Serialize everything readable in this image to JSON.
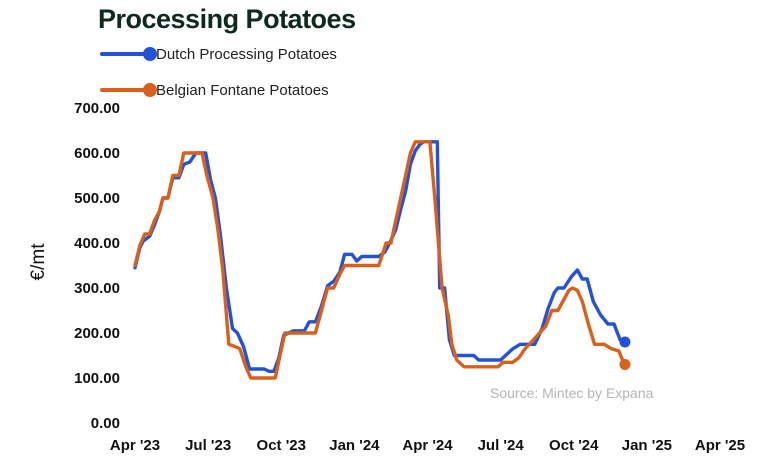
{
  "chart_data": {
    "type": "line",
    "title": "Processing Potatoes",
    "ylabel": "€/mt",
    "xlabel": "",
    "ylim": [
      0,
      700
    ],
    "yticks": [
      "0.00",
      "100.00",
      "200.00",
      "300.00",
      "400.00",
      "500.00",
      "600.00",
      "700.00"
    ],
    "xticks": [
      "Apr '23",
      "Jul '23",
      "Oct '23",
      "Jan '24",
      "Apr '24",
      "Jul '24",
      "Oct '24",
      "Jan '25",
      "Apr '25"
    ],
    "xlim": [
      0,
      24
    ],
    "grid": false,
    "legend": "top-left",
    "source": "Source: Mintec by Expana",
    "series": [
      {
        "name": "Dutch Processing Potatoes",
        "color": "#2352d6",
        "points": [
          [
            0,
            345
          ],
          [
            0.2,
            390
          ],
          [
            0.35,
            405
          ],
          [
            0.6,
            415
          ],
          [
            0.8,
            440
          ],
          [
            1.0,
            470
          ],
          [
            1.15,
            500
          ],
          [
            1.35,
            500
          ],
          [
            1.55,
            545
          ],
          [
            1.8,
            545
          ],
          [
            2.0,
            575
          ],
          [
            2.25,
            580
          ],
          [
            2.5,
            600
          ],
          [
            2.9,
            600
          ],
          [
            3.1,
            540
          ],
          [
            3.3,
            500
          ],
          [
            3.5,
            420
          ],
          [
            3.75,
            300
          ],
          [
            4.0,
            210
          ],
          [
            4.2,
            200
          ],
          [
            4.45,
            170
          ],
          [
            4.7,
            120
          ],
          [
            5.3,
            120
          ],
          [
            5.5,
            115
          ],
          [
            5.7,
            115
          ],
          [
            5.9,
            145
          ],
          [
            6.1,
            195
          ],
          [
            6.5,
            205
          ],
          [
            6.95,
            205
          ],
          [
            7.15,
            225
          ],
          [
            7.4,
            225
          ],
          [
            7.65,
            260
          ],
          [
            7.9,
            305
          ],
          [
            8.15,
            315
          ],
          [
            8.4,
            335
          ],
          [
            8.6,
            375
          ],
          [
            8.9,
            375
          ],
          [
            9.1,
            360
          ],
          [
            9.3,
            370
          ],
          [
            10.0,
            370
          ],
          [
            10.25,
            380
          ],
          [
            10.45,
            400
          ],
          [
            10.7,
            430
          ],
          [
            10.9,
            475
          ],
          [
            11.1,
            515
          ],
          [
            11.3,
            575
          ],
          [
            11.5,
            605
          ],
          [
            11.7,
            620
          ],
          [
            11.85,
            625
          ],
          [
            12.4,
            625
          ],
          [
            12.5,
            300
          ],
          [
            12.7,
            300
          ],
          [
            12.9,
            185
          ],
          [
            13.1,
            150
          ],
          [
            13.9,
            150
          ],
          [
            14.1,
            140
          ],
          [
            15.0,
            140
          ],
          [
            15.2,
            150
          ],
          [
            15.5,
            165
          ],
          [
            15.8,
            175
          ],
          [
            16.4,
            175
          ],
          [
            16.7,
            210
          ],
          [
            16.95,
            255
          ],
          [
            17.2,
            290
          ],
          [
            17.35,
            300
          ],
          [
            17.6,
            300
          ],
          [
            17.9,
            325
          ],
          [
            18.15,
            340
          ],
          [
            18.35,
            320
          ],
          [
            18.55,
            320
          ],
          [
            18.8,
            270
          ],
          [
            19.1,
            240
          ],
          [
            19.4,
            220
          ],
          [
            19.65,
            220
          ],
          [
            19.9,
            185
          ],
          [
            20.1,
            180
          ]
        ],
        "end_marker": [
          20.1,
          180
        ]
      },
      {
        "name": "Belgian Fontane Potatoes",
        "color": "#d9601a",
        "points": [
          [
            0,
            350
          ],
          [
            0.2,
            395
          ],
          [
            0.4,
            420
          ],
          [
            0.6,
            420
          ],
          [
            0.8,
            450
          ],
          [
            1.0,
            470
          ],
          [
            1.15,
            500
          ],
          [
            1.35,
            500
          ],
          [
            1.55,
            550
          ],
          [
            1.8,
            550
          ],
          [
            2.0,
            600
          ],
          [
            2.75,
            600
          ],
          [
            2.95,
            550
          ],
          [
            3.2,
            500
          ],
          [
            3.4,
            430
          ],
          [
            3.6,
            340
          ],
          [
            3.85,
            175
          ],
          [
            4.1,
            170
          ],
          [
            4.3,
            165
          ],
          [
            4.55,
            125
          ],
          [
            4.75,
            100
          ],
          [
            5.75,
            100
          ],
          [
            5.95,
            150
          ],
          [
            6.15,
            200
          ],
          [
            6.4,
            200
          ],
          [
            7.4,
            200
          ],
          [
            7.65,
            250
          ],
          [
            7.9,
            300
          ],
          [
            8.15,
            300
          ],
          [
            8.4,
            330
          ],
          [
            8.6,
            350
          ],
          [
            10.0,
            350
          ],
          [
            10.3,
            400
          ],
          [
            10.5,
            400
          ],
          [
            10.7,
            450
          ],
          [
            10.9,
            500
          ],
          [
            11.1,
            550
          ],
          [
            11.3,
            600
          ],
          [
            11.5,
            625
          ],
          [
            12.1,
            625
          ],
          [
            12.3,
            500
          ],
          [
            12.6,
            300
          ],
          [
            12.85,
            240
          ],
          [
            13.0,
            175
          ],
          [
            13.2,
            140
          ],
          [
            13.5,
            125
          ],
          [
            14.9,
            125
          ],
          [
            15.1,
            135
          ],
          [
            15.5,
            135
          ],
          [
            15.75,
            145
          ],
          [
            16.0,
            165
          ],
          [
            16.35,
            185
          ],
          [
            16.6,
            200
          ],
          [
            16.85,
            215
          ],
          [
            17.1,
            250
          ],
          [
            17.35,
            250
          ],
          [
            17.55,
            270
          ],
          [
            17.8,
            295
          ],
          [
            17.95,
            300
          ],
          [
            18.15,
            295
          ],
          [
            18.35,
            270
          ],
          [
            18.6,
            220
          ],
          [
            18.85,
            175
          ],
          [
            19.25,
            175
          ],
          [
            19.55,
            165
          ],
          [
            19.85,
            160
          ],
          [
            20.0,
            140
          ],
          [
            20.1,
            130
          ]
        ],
        "end_marker": [
          20.1,
          130
        ]
      }
    ]
  }
}
